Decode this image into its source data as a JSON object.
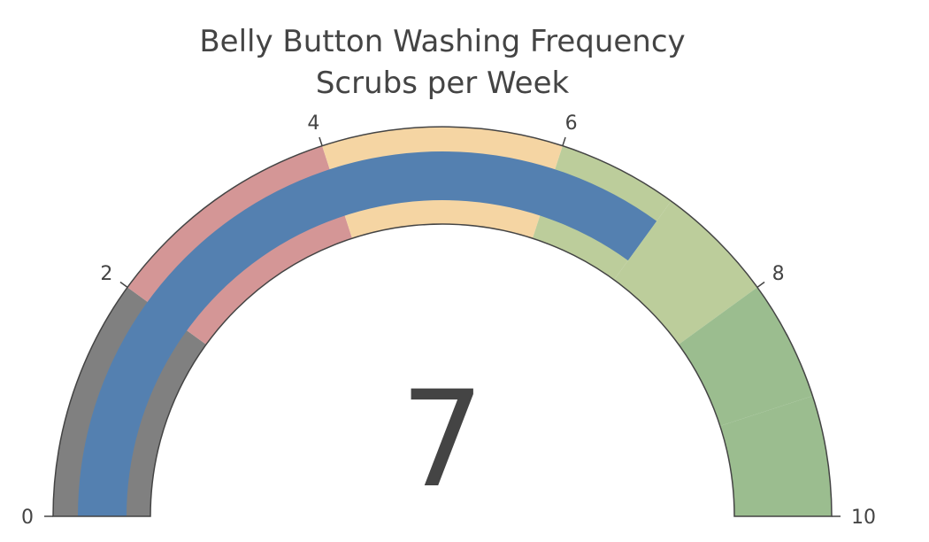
{
  "chart_data": {
    "type": "gauge",
    "title": "Belly Button Washing Frequency",
    "subtitle": "Scrubs per Week",
    "value": 7,
    "range": [
      0,
      10
    ],
    "tick_labels": [
      "0",
      "2",
      "4",
      "6",
      "8",
      "10"
    ],
    "tick_values": [
      0,
      2,
      4,
      6,
      8,
      10
    ],
    "steps": [
      {
        "range": [
          0,
          2
        ],
        "color": "#808080"
      },
      {
        "range": [
          2,
          4
        ],
        "color": "#d49696"
      },
      {
        "range": [
          4,
          6
        ],
        "color": "#f5d5a3"
      },
      {
        "range": [
          6,
          7
        ],
        "color": "#bccd9b"
      },
      {
        "range": [
          7,
          8
        ],
        "color": "#bccd9b"
      },
      {
        "range": [
          8,
          9
        ],
        "color": "#9bbd8f"
      },
      {
        "range": [
          9,
          10
        ],
        "color": "#9bbd8f"
      }
    ],
    "bar_color": "#5480b0",
    "outline_color": "#444444"
  }
}
